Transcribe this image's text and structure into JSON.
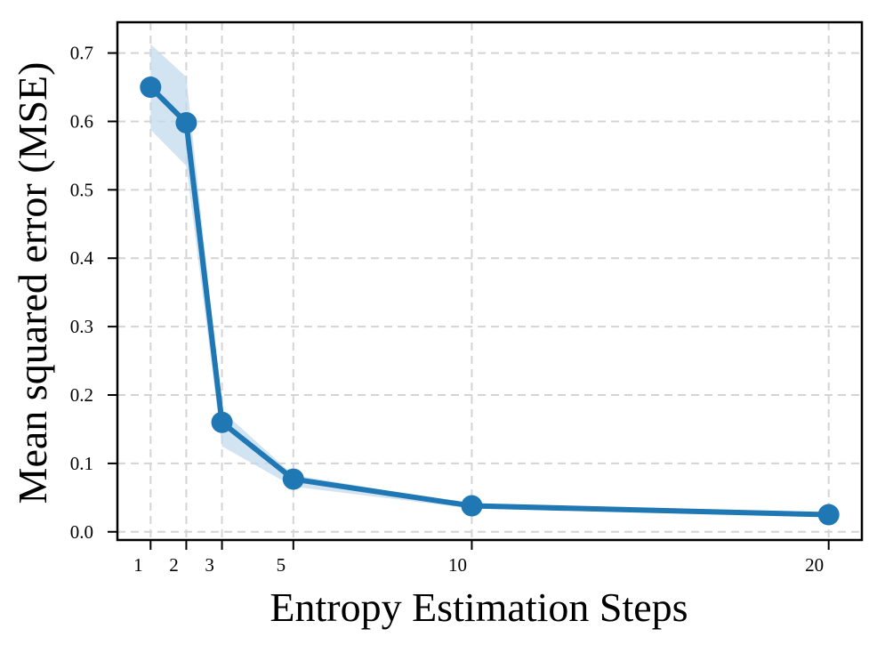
{
  "chart_data": {
    "type": "line",
    "xlabel": "Entropy Estimation Steps",
    "ylabel": "Mean squared error (MSE)",
    "x": [
      1,
      2,
      3,
      5,
      10,
      20
    ],
    "x_tick_labels": [
      "1",
      "2",
      "3",
      "5",
      "10",
      "20"
    ],
    "y_ticks": [
      0.0,
      0.1,
      0.2,
      0.3,
      0.4,
      0.5,
      0.6,
      0.7
    ],
    "y_tick_labels": [
      "0.0",
      "0.1",
      "0.2",
      "0.3",
      "0.4",
      "0.5",
      "0.6",
      "0.7"
    ],
    "xlim": [
      0.07,
      20.93
    ],
    "ylim": [
      -0.012,
      0.745
    ],
    "grid": true,
    "series": [
      {
        "values": [
          0.65,
          0.598,
          0.16,
          0.077,
          0.038,
          0.025
        ],
        "lower": [
          0.588,
          0.535,
          0.125,
          0.066,
          0.034,
          0.022
        ],
        "upper": [
          0.713,
          0.665,
          0.177,
          0.083,
          0.04,
          0.028
        ],
        "color": "#1f77b4",
        "band_color": "#c3d9ee"
      }
    ]
  }
}
